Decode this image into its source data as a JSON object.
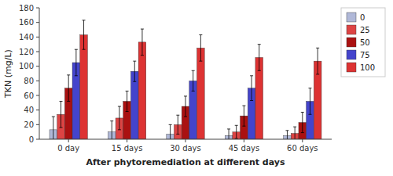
{
  "chart_data": {
    "type": "bar",
    "xlabel": "After phytoremediation at different days",
    "ylabel": "TKN (mg/L)",
    "categories": [
      "0 day",
      "15 days",
      "30 days",
      "45 days",
      "60 days"
    ],
    "series": [
      {
        "name": "0",
        "color": "#b0b8d8",
        "values": [
          13,
          10,
          7,
          5,
          5
        ],
        "errors": [
          18,
          15,
          13,
          9,
          7
        ]
      },
      {
        "name": "25",
        "color": "#dd4444",
        "values": [
          34,
          29,
          20,
          10,
          8
        ],
        "errors": [
          18,
          16,
          13,
          9,
          9
        ]
      },
      {
        "name": "50",
        "color": "#aa1111",
        "values": [
          70,
          52,
          45,
          32,
          23
        ],
        "errors": [
          18,
          14,
          14,
          14,
          14
        ]
      },
      {
        "name": "75",
        "color": "#4444cc",
        "values": [
          105,
          93,
          80,
          70,
          52
        ],
        "errors": [
          18,
          14,
          14,
          17,
          18
        ]
      },
      {
        "name": "100",
        "color": "#dd3333",
        "values": [
          143,
          133,
          125,
          112,
          107
        ],
        "errors": [
          20,
          18,
          18,
          18,
          18
        ]
      }
    ],
    "ylim": [
      0,
      180
    ],
    "yticks": [
      0,
      20,
      40,
      60,
      80,
      100,
      120,
      140,
      160,
      180
    ],
    "grid": false,
    "legend": "right"
  }
}
